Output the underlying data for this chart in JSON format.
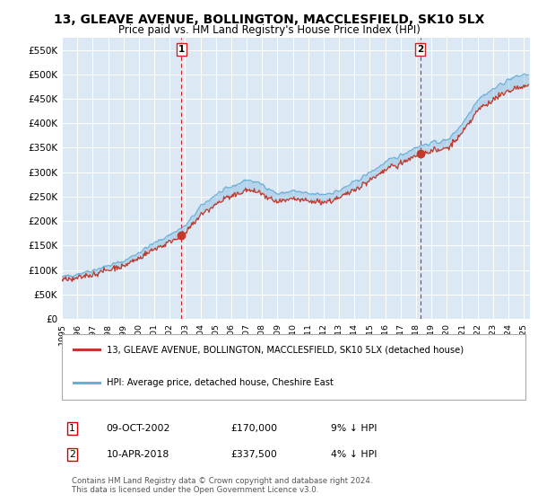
{
  "title": "13, GLEAVE AVENUE, BOLLINGTON, MACCLESFIELD, SK10 5LX",
  "subtitle": "Price paid vs. HM Land Registry's House Price Index (HPI)",
  "title_fontsize": 10,
  "subtitle_fontsize": 8.5,
  "background_color": "#ffffff",
  "plot_bg_color": "#dde8f5",
  "grid_color": "#ffffff",
  "ylim": [
    0,
    575000
  ],
  "yticks": [
    0,
    50000,
    100000,
    150000,
    200000,
    250000,
    300000,
    350000,
    400000,
    450000,
    500000,
    550000
  ],
  "ytick_labels": [
    "£0",
    "£50K",
    "£100K",
    "£150K",
    "£200K",
    "£250K",
    "£300K",
    "£350K",
    "£400K",
    "£450K",
    "£500K",
    "£550K"
  ],
  "sale1_date_num": 2002.77,
  "sale1_price": 170000,
  "sale1_label": "1",
  "sale2_date_num": 2018.27,
  "sale2_price": 337500,
  "sale2_label": "2",
  "legend_line1": "13, GLEAVE AVENUE, BOLLINGTON, MACCLESFIELD, SK10 5LX (detached house)",
  "legend_line2": "HPI: Average price, detached house, Cheshire East",
  "table_row1": [
    "1",
    "09-OCT-2002",
    "£170,000",
    "9% ↓ HPI"
  ],
  "table_row2": [
    "2",
    "10-APR-2018",
    "£337,500",
    "4% ↓ HPI"
  ],
  "footer": "Contains HM Land Registry data © Crown copyright and database right 2024.\nThis data is licensed under the Open Government Licence v3.0.",
  "hpi_color": "#6baed6",
  "sale_color": "#c0392b",
  "marker_vline_color": "#cc2222",
  "sale_marker_color": "#c0392b"
}
